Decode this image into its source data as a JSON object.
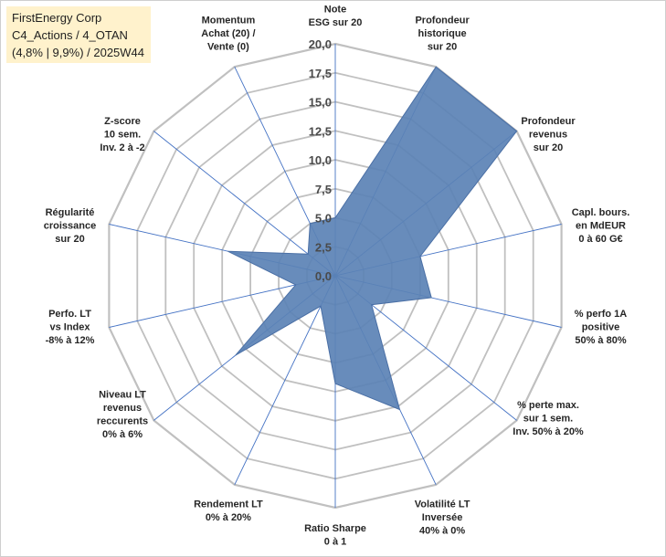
{
  "title_box": {
    "line1": "FirstEnergy Corp",
    "line2": "C4_Actions / 4_OTAN",
    "line3": "(4,8% | 9,9%) / 2025W44"
  },
  "chart_data": {
    "type": "radar",
    "rmin": 0,
    "rmax": 20,
    "ticks": [
      "0,0",
      "2,5",
      "5,0",
      "7,5",
      "10,0",
      "12,5",
      "15,0",
      "17,5",
      "20,0"
    ],
    "axes": [
      {
        "label": [
          "Note",
          "ESG sur 20"
        ],
        "value": 5.0
      },
      {
        "label": [
          "Profondeur",
          "historique",
          "sur 20"
        ],
        "value": 20.0
      },
      {
        "label": [
          "Profondeur",
          "revenus",
          "sur 20"
        ],
        "value": 20.0
      },
      {
        "label": [
          "Capl. bours.",
          "en MdEUR",
          "0 à 60 G€"
        ],
        "value": 7.5
      },
      {
        "label": [
          "% perfo 1A",
          "positive",
          "50% à 80%"
        ],
        "value": 8.5
      },
      {
        "label": [
          "% perte max.",
          "sur 1 sem.",
          "Inv. 50% à 20%"
        ],
        "value": 4.0
      },
      {
        "label": [
          "Volatilité LT",
          "Inversée",
          "40% à 0%"
        ],
        "value": 12.8
      },
      {
        "label": [
          "Ratio Sharpe",
          "0 à 1"
        ],
        "value": 9.3
      },
      {
        "label": [
          "Rendement LT",
          "0% à 20%"
        ],
        "value": 2.9
      },
      {
        "label": [
          "Niveau LT",
          "revenus",
          "reccurents",
          "0% à 6%"
        ],
        "value": 11.0
      },
      {
        "label": [
          "Perfo. LT",
          "vs Index",
          "-8% à 12%"
        ],
        "value": 3.5
      },
      {
        "label": [
          "Régularité",
          "croissance",
          "sur 20"
        ],
        "value": 9.5
      },
      {
        "label": [
          "Z-score",
          "10 sem.",
          "Inv. 2 à -2"
        ],
        "value": 3.0
      },
      {
        "label": [
          "Momentum",
          "Achat (20) /",
          "Vente (0)"
        ],
        "value": 5.0
      }
    ],
    "fill_color": "#5b82b5",
    "grid_color": "#c0c0c0",
    "axis_color": "#4472c4",
    "grid": true
  }
}
